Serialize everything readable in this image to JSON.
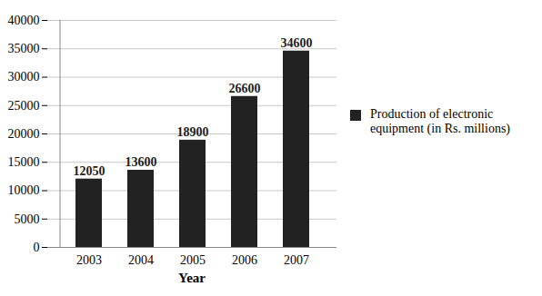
{
  "chart_data": {
    "type": "bar",
    "x_label": "Year",
    "categories": [
      "2003",
      "2004",
      "2005",
      "2006",
      "2007"
    ],
    "series": [
      {
        "name": "Production of electronic equipment (in Rs. millions)",
        "color": "#222222",
        "values": [
          12050,
          13600,
          18900,
          26600,
          34600
        ]
      }
    ],
    "ylim": [
      0,
      40000
    ],
    "yticks": [
      0,
      5000,
      10000,
      15000,
      20000,
      25000,
      30000,
      35000,
      40000
    ],
    "grid": true,
    "legend": "right",
    "data_labels": true
  }
}
